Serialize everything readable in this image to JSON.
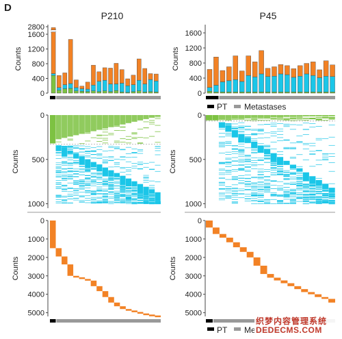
{
  "panel_label": "D",
  "colors": {
    "orange": "#F28225",
    "cyan": "#1BC6E8",
    "green": "#7DC242",
    "dark_green": "#2E7D32",
    "axis": "#444444",
    "pt_bar": "#000000",
    "met_bar": "#999999",
    "divider": "#9a9a9a"
  },
  "legend": {
    "pt": "PT",
    "metastases": "Metastases"
  },
  "watermark": {
    "line1": "织梦内容管理系统",
    "line2": "DEDECMS.COM"
  },
  "chart_data": [
    {
      "id": "p210-stacked",
      "type": "bar",
      "title": "P210",
      "ylabel": "Counts",
      "y_break": [
        1800,
        2650
      ],
      "yticks": [
        0,
        400,
        800,
        1200,
        1600,
        2800
      ],
      "groups": [
        "PT",
        "M",
        "M",
        "M",
        "M",
        "M",
        "M",
        "M",
        "M",
        "M",
        "M",
        "M",
        "M",
        "M",
        "M",
        "M",
        "M",
        "M",
        "M"
      ],
      "series": [
        {
          "color": "green",
          "values": [
            480,
            80,
            120,
            130,
            60,
            50,
            40,
            60,
            40,
            60,
            40,
            70,
            30,
            20,
            40,
            60,
            30,
            40,
            30
          ]
        },
        {
          "color": "cyan",
          "values": [
            50,
            70,
            110,
            130,
            90,
            70,
            70,
            160,
            280,
            290,
            210,
            180,
            240,
            180,
            190,
            290,
            220,
            330,
            300
          ]
        },
        {
          "color": "orange",
          "values": [
            1250,
            330,
            320,
            1200,
            210,
            70,
            190,
            540,
            260,
            340,
            430,
            560,
            370,
            190,
            260,
            580,
            420,
            160,
            190
          ]
        }
      ]
    },
    {
      "id": "p45-stacked",
      "type": "bar",
      "title": "P45",
      "ylabel": "Counts",
      "yticks": [
        0,
        400,
        800,
        1200,
        1600
      ],
      "groups": [
        "PT",
        "PT",
        "M",
        "M",
        "M",
        "M",
        "M",
        "M",
        "M",
        "M",
        "M",
        "M",
        "M",
        "M",
        "M",
        "M",
        "M",
        "M",
        "M",
        "M"
      ],
      "series": [
        {
          "color": "green",
          "values": [
            50,
            30,
            30,
            30,
            30,
            30,
            30,
            30,
            30,
            30,
            30,
            30,
            30,
            30,
            30,
            30,
            30,
            30,
            30,
            30
          ]
        },
        {
          "color": "cyan",
          "values": [
            100,
            180,
            270,
            300,
            330,
            280,
            440,
            400,
            480,
            410,
            420,
            480,
            460,
            390,
            420,
            480,
            440,
            380,
            420,
            410
          ]
        },
        {
          "color": "orange",
          "values": [
            480,
            750,
            300,
            370,
            630,
            280,
            520,
            400,
            620,
            220,
            250,
            250,
            240,
            230,
            280,
            280,
            360,
            210,
            410,
            310
          ]
        }
      ]
    },
    {
      "id": "p210-heat-mid",
      "type": "heatmap",
      "ylabel": "Counts",
      "yticks": [
        0,
        500,
        1000
      ],
      "ylim": [
        0,
        1050
      ]
    },
    {
      "id": "p45-heat-mid",
      "type": "heatmap",
      "ylabel": "Counts",
      "yticks": [
        0,
        500,
        1000
      ],
      "ylim": [
        0,
        1050
      ]
    },
    {
      "id": "p210-heat-bottom",
      "type": "heatmap",
      "ylabel": "Counts",
      "yticks": [
        0,
        1000,
        2000,
        3000,
        4000,
        5000
      ],
      "ylim": [
        0,
        5200
      ],
      "steps": [
        {
          "col": 0,
          "start": 0,
          "end": 1500
        },
        {
          "col": 1,
          "start": 1500,
          "end": 1950
        },
        {
          "col": 2,
          "start": 1950,
          "end": 2380
        },
        {
          "col": 3,
          "start": 2380,
          "end": 3000
        },
        {
          "col": 4,
          "start": 3000,
          "end": 3080
        },
        {
          "col": 5,
          "start": 3080,
          "end": 3170
        },
        {
          "col": 6,
          "start": 3170,
          "end": 3260
        },
        {
          "col": 7,
          "start": 3260,
          "end": 3560
        },
        {
          "col": 8,
          "start": 3560,
          "end": 3830
        },
        {
          "col": 9,
          "start": 3830,
          "end": 4150
        },
        {
          "col": 10,
          "start": 4150,
          "end": 4450
        },
        {
          "col": 11,
          "start": 4450,
          "end": 4650
        },
        {
          "col": 12,
          "start": 4650,
          "end": 4800
        },
        {
          "col": 13,
          "start": 4800,
          "end": 4880
        },
        {
          "col": 14,
          "start": 4880,
          "end": 4960
        },
        {
          "col": 15,
          "start": 4960,
          "end": 5040
        },
        {
          "col": 16,
          "start": 5040,
          "end": 5100
        },
        {
          "col": 17,
          "start": 5100,
          "end": 5150
        },
        {
          "col": 18,
          "start": 5150,
          "end": 5200
        }
      ]
    },
    {
      "id": "p45-heat-bottom",
      "type": "heatmap",
      "ylabel": "Counts",
      "yticks": [
        0,
        1000,
        2000,
        3000,
        4000,
        5000
      ],
      "ylim": [
        0,
        5200
      ],
      "steps": [
        {
          "col": 0,
          "start": 0,
          "end": 380
        },
        {
          "col": 1,
          "start": 380,
          "end": 730
        },
        {
          "col": 2,
          "start": 730,
          "end": 930
        },
        {
          "col": 3,
          "start": 930,
          "end": 1180
        },
        {
          "col": 4,
          "start": 1180,
          "end": 1450
        },
        {
          "col": 5,
          "start": 1450,
          "end": 1700
        },
        {
          "col": 6,
          "start": 1700,
          "end": 2000
        },
        {
          "col": 7,
          "start": 2000,
          "end": 2450
        },
        {
          "col": 8,
          "start": 2450,
          "end": 2900
        },
        {
          "col": 9,
          "start": 2900,
          "end": 3100
        },
        {
          "col": 10,
          "start": 3100,
          "end": 3250
        },
        {
          "col": 11,
          "start": 3250,
          "end": 3400
        },
        {
          "col": 12,
          "start": 3400,
          "end": 3560
        },
        {
          "col": 13,
          "start": 3560,
          "end": 3720
        },
        {
          "col": 14,
          "start": 3720,
          "end": 3880
        },
        {
          "col": 15,
          "start": 3880,
          "end": 4000
        },
        {
          "col": 16,
          "start": 4000,
          "end": 4150
        },
        {
          "col": 17,
          "start": 4150,
          "end": 4250
        },
        {
          "col": 18,
          "start": 4250,
          "end": 4450
        }
      ]
    }
  ]
}
